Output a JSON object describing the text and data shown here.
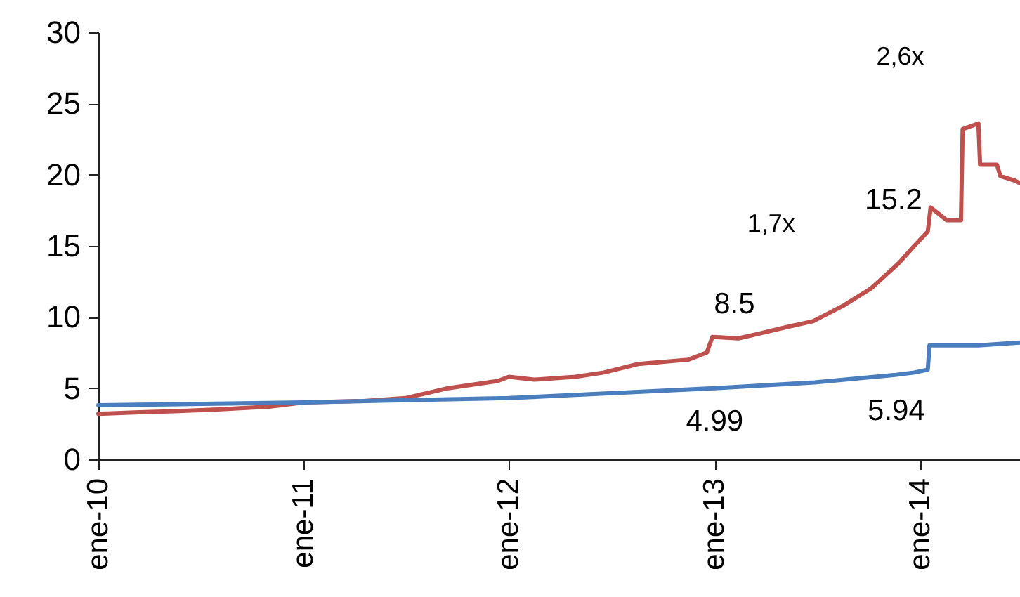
{
  "chart_data": {
    "type": "line",
    "xlim": [
      "2010-01-01",
      "2014-06-28"
    ],
    "xticks": [
      {
        "value": "2010-01-01",
        "label": "ene-10"
      },
      {
        "value": "2011-01-01",
        "label": "ene-11"
      },
      {
        "value": "2012-01-01",
        "label": "ene-12"
      },
      {
        "value": "2013-01-01",
        "label": "ene-13"
      },
      {
        "value": "2014-01-01",
        "label": "ene-14"
      }
    ],
    "ylim": [
      0,
      30
    ],
    "yticks": [
      0,
      5,
      10,
      15,
      20,
      25,
      30
    ],
    "grid": false,
    "series": [
      {
        "color": "#c0504d",
        "x": [
          "2010-01-01",
          "2010-03-15",
          "2010-06-01",
          "2010-08-01",
          "2010-11-01",
          "2011-01-01",
          "2011-04-18",
          "2011-07-01",
          "2011-09-15",
          "2011-12-12",
          "2012-01-01",
          "2012-02-15",
          "2012-04-28",
          "2012-06-18",
          "2012-08-18",
          "2012-11-15",
          "2012-12-18",
          "2012-12-28",
          "2013-02-12",
          "2013-03-18",
          "2013-05-10",
          "2013-06-25",
          "2013-08-18",
          "2013-10-06",
          "2013-11-25",
          "2013-12-22",
          "2014-01-15",
          "2014-01-20",
          "2014-02-18",
          "2014-03-15",
          "2014-03-18",
          "2014-04-15",
          "2014-04-18",
          "2014-05-18",
          "2014-05-24",
          "2014-06-18",
          "2014-06-28"
        ],
        "values": [
          3.2,
          3.3,
          3.4,
          3.5,
          3.7,
          4.0,
          4.1,
          4.3,
          5.0,
          5.5,
          5.8,
          5.6,
          5.8,
          6.1,
          6.7,
          7.0,
          7.5,
          8.6,
          8.5,
          8.8,
          9.3,
          9.7,
          10.8,
          12.0,
          13.8,
          15.0,
          16.0,
          17.7,
          16.8,
          16.8,
          23.2,
          23.6,
          20.7,
          20.7,
          19.9,
          19.6,
          19.4
        ]
      },
      {
        "color": "#4a7ebf",
        "x": [
          "2010-01-01",
          "2011-01-01",
          "2012-01-01",
          "2013-01-01",
          "2013-06-28",
          "2013-11-20",
          "2013-12-22",
          "2014-01-15",
          "2014-01-18",
          "2014-04-15",
          "2014-06-28"
        ],
        "values": [
          3.8,
          4.0,
          4.3,
          4.99,
          5.4,
          5.94,
          6.1,
          6.3,
          8.0,
          8.0,
          8.2
        ]
      }
    ],
    "annotations": [
      {
        "text": "8.5",
        "x": "2013-02-15",
        "y": 8.5
      },
      {
        "text": "15.2",
        "x": "2013-12-20",
        "y": 15.2
      },
      {
        "text": "4.99",
        "x": "2013-01-01",
        "y": 4.99
      },
      {
        "text": "5.94",
        "x": "2013-11-20",
        "y": 5.94
      },
      "1,7x",
      "2,6x"
    ]
  }
}
